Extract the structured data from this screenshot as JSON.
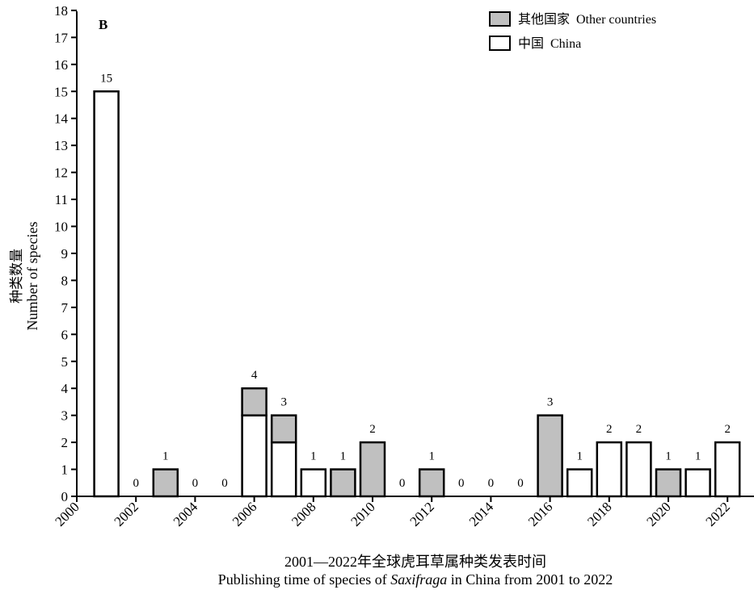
{
  "panel_label": "B",
  "chart_data": {
    "type": "bar",
    "stacked": true,
    "x": [
      2001,
      2002,
      2003,
      2004,
      2005,
      2006,
      2007,
      2008,
      2009,
      2010,
      2011,
      2012,
      2013,
      2014,
      2015,
      2016,
      2017,
      2018,
      2019,
      2020,
      2021,
      2022
    ],
    "series": [
      {
        "name": "中国  China",
        "color": "#ffffff",
        "values": [
          15,
          0,
          0,
          0,
          0,
          3,
          2,
          1,
          0,
          0,
          0,
          0,
          0,
          0,
          0,
          0,
          1,
          2,
          2,
          0,
          1,
          2
        ]
      },
      {
        "name": "其他国家  Other countries",
        "color": "#c0c0c0",
        "values": [
          0,
          0,
          1,
          0,
          0,
          1,
          1,
          0,
          1,
          2,
          0,
          1,
          0,
          0,
          0,
          3,
          0,
          0,
          0,
          1,
          0,
          0
        ]
      }
    ],
    "totals": [
      15,
      0,
      1,
      0,
      0,
      4,
      3,
      1,
      1,
      2,
      0,
      1,
      0,
      0,
      0,
      3,
      1,
      2,
      2,
      1,
      1,
      2
    ],
    "x_ticks": [
      "2000",
      "2002",
      "2004",
      "2006",
      "2008",
      "2010",
      "2012",
      "2014",
      "2016",
      "2018",
      "2020",
      "2022"
    ],
    "y_ticks": [
      0,
      1,
      2,
      3,
      4,
      5,
      6,
      7,
      8,
      9,
      10,
      11,
      12,
      13,
      14,
      15,
      16,
      17,
      18
    ],
    "xlim": [
      2000,
      2023
    ],
    "ylim": [
      0,
      18
    ],
    "xlabel": {
      "zh": "2001—2022年全球虎耳草属种类发表时间",
      "en_before": "Publishing time of species of ",
      "en_italic": "Saxifraga",
      "en_after": " in China from 2001 to 2022"
    },
    "ylabel": {
      "zh": "种类数量",
      "en": "Number of species"
    },
    "legend_position": "top-right",
    "grid": false
  }
}
